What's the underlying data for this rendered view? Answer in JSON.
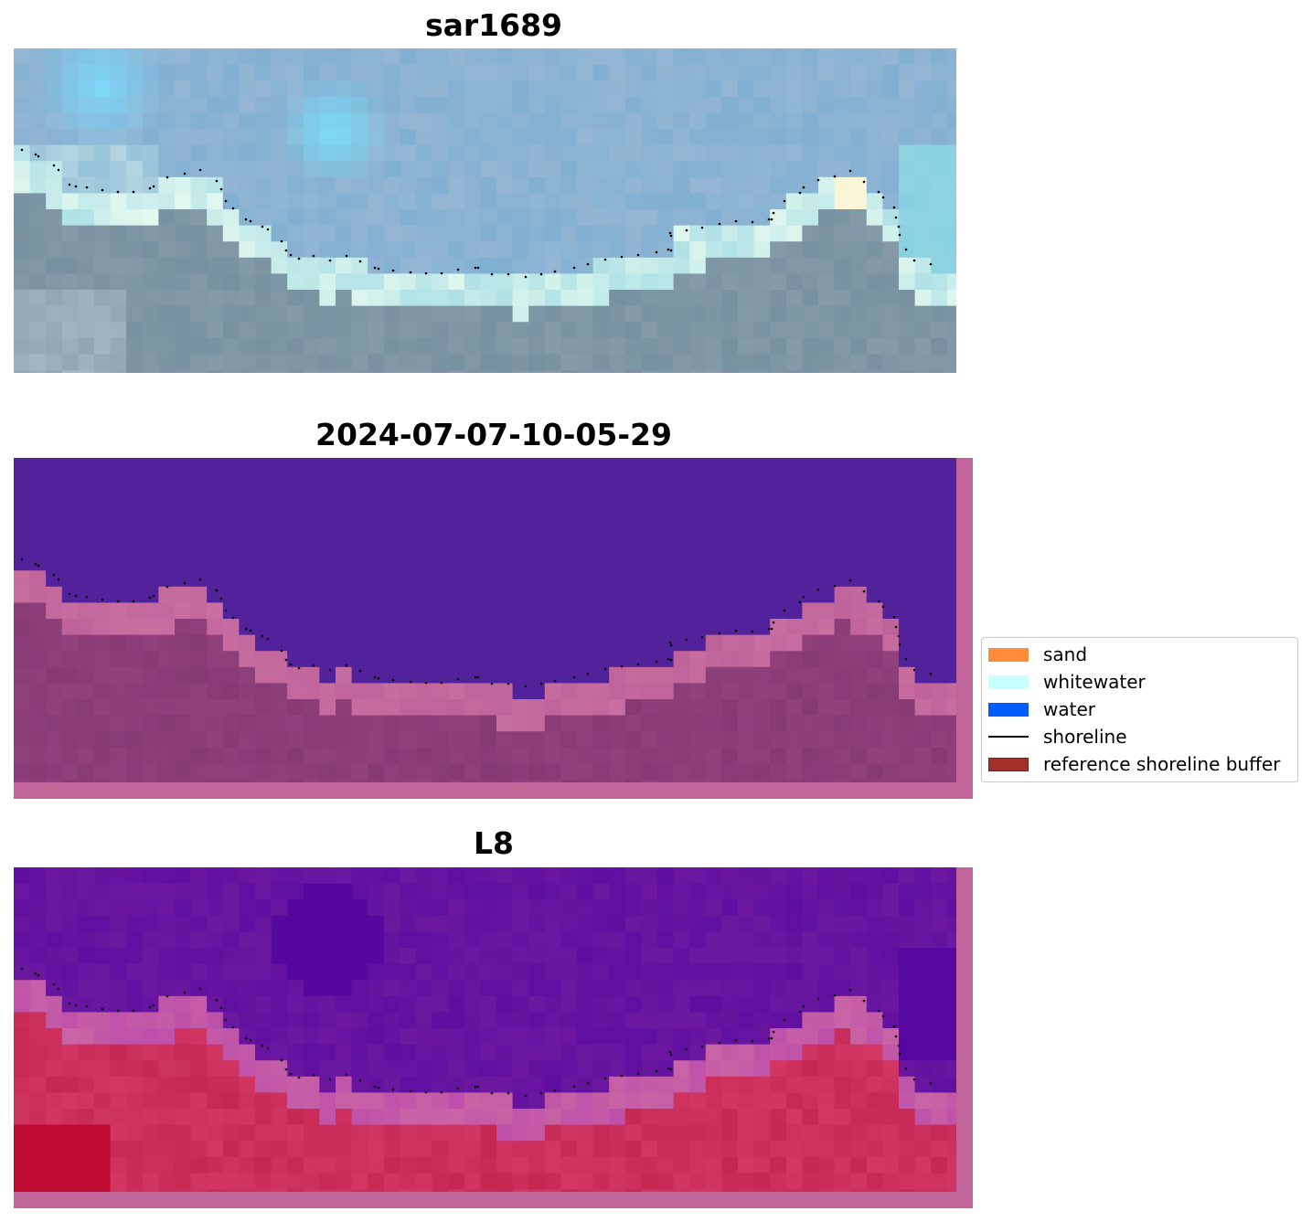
{
  "panels": [
    {
      "title": "sar1689",
      "style": "rgb"
    },
    {
      "title": "2024-07-07-10-05-29",
      "style": "classified"
    },
    {
      "title": "L8",
      "style": "mndwi"
    }
  ],
  "legend": {
    "items": [
      {
        "label": "sand",
        "color": "#ff8c3a",
        "kind": "patch"
      },
      {
        "label": "whitewater",
        "color": "#c8ffff",
        "kind": "patch"
      },
      {
        "label": "water",
        "color": "#005cff",
        "kind": "patch"
      },
      {
        "label": "shoreline",
        "color": "#000000",
        "kind": "line"
      },
      {
        "label": "reference shoreline buffer",
        "color": "#a0302a",
        "kind": "patch"
      }
    ]
  },
  "colors": {
    "sky_blue": "#7fd4f7",
    "land_gray": "#7f96a3",
    "whitewater": "#dcfcf4",
    "water_purple": "#52229a",
    "buffer_pink": "#c0649a",
    "land_mauve": "#853a73",
    "mndwi_purple": "#5e1099",
    "mndwi_red": "#c5204f"
  }
}
